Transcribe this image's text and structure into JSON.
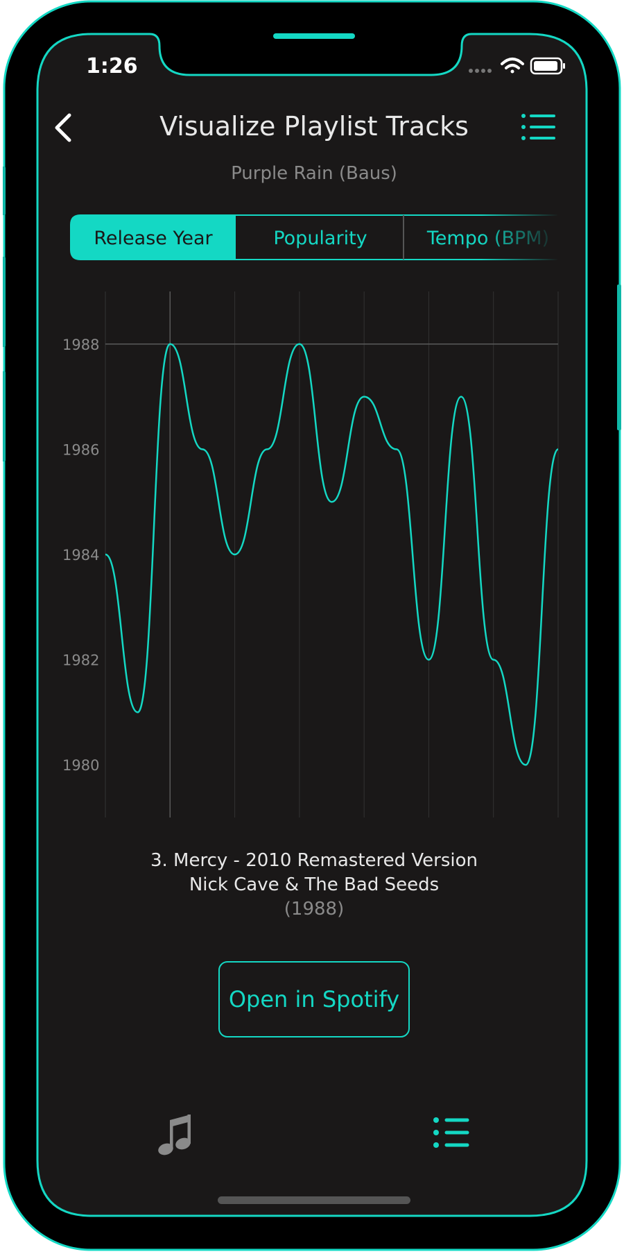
{
  "status_bar": {
    "time": "1:26"
  },
  "header": {
    "title": "Visualize Playlist Tracks",
    "subtitle": "Purple Rain (Baus)"
  },
  "tabs": [
    {
      "label": "Release Year",
      "selected": true
    },
    {
      "label": "Popularity",
      "selected": false
    },
    {
      "label": "Tempo (BPM)",
      "selected": false
    }
  ],
  "chart_data": {
    "type": "line",
    "x": [
      1,
      2,
      3,
      4,
      5,
      6,
      7,
      8,
      9,
      10,
      11,
      12,
      13,
      14,
      15
    ],
    "values": [
      1984,
      1981,
      1988,
      1986,
      1984,
      1986,
      1988,
      1985,
      1987,
      1986,
      1982,
      1987,
      1982,
      1980,
      1986
    ],
    "ylim": [
      1979,
      1989
    ],
    "yticks": [
      1980,
      1982,
      1984,
      1986,
      1988
    ],
    "ytick_labels": [
      "1980",
      "1982",
      "1984",
      "1986",
      "1988"
    ],
    "highlight": {
      "x": 3,
      "y": 1988
    },
    "grid": true
  },
  "selected_track": {
    "title": "3. Mercy - 2010 Remastered Version",
    "artist": "Nick Cave & The Bad Seeds",
    "year": "(1988)"
  },
  "open_button_label": "Open in Spotify",
  "colors": {
    "accent": "#14d8c4",
    "background": "#1a1818",
    "frame": "#000000",
    "muted": "#8a8a8a",
    "text": "#e8e8e8"
  },
  "icons": {
    "back": "chevron-left-icon",
    "list": "list-icon",
    "music": "music-note-icon",
    "wifi": "wifi-icon",
    "battery": "battery-icon",
    "signal": "signal-icon"
  }
}
